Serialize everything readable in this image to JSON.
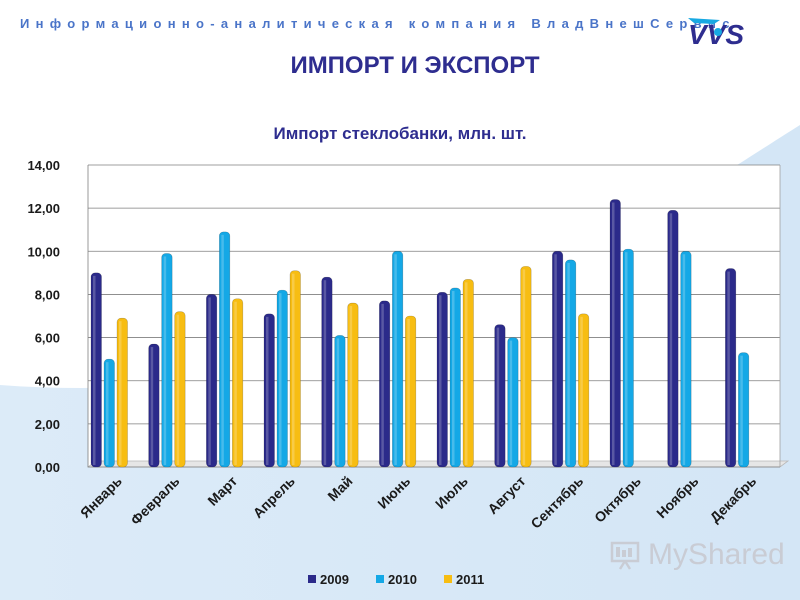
{
  "header": {
    "company_line": "Информационно-аналитическая компания ВладВнешСервис",
    "logo_text": "VVS"
  },
  "page_title": "ИМПОРТ И ЭКСПОРТ",
  "watermark": {
    "text": "MyShared"
  },
  "colors": {
    "2009": "#2b2a8a",
    "2010": "#14a8e6",
    "2011": "#f7bd12",
    "title": "#2e2d8f",
    "header": "#4a74c8"
  },
  "chart_data": {
    "type": "bar",
    "title": "Импорт стеклобанки, млн. шт.",
    "xlabel": "",
    "ylabel": "",
    "ylim": [
      0,
      14
    ],
    "yticks": [
      "0,00",
      "2,00",
      "4,00",
      "6,00",
      "8,00",
      "10,00",
      "12,00",
      "14,00"
    ],
    "grid": true,
    "legend": "bottom",
    "categories": [
      "Январь",
      "Февраль",
      "Март",
      "Апрель",
      "Май",
      "Июнь",
      "Июль",
      "Август",
      "Сентябрь",
      "Октябрь",
      "Ноябрь",
      "Декабрь"
    ],
    "series": [
      {
        "name": "2009",
        "values": [
          9.0,
          5.7,
          8.0,
          7.1,
          8.8,
          7.7,
          8.1,
          6.6,
          10.0,
          12.4,
          11.9,
          9.2
        ]
      },
      {
        "name": "2010",
        "values": [
          5.0,
          9.9,
          10.9,
          8.2,
          6.1,
          10.0,
          8.3,
          6.0,
          9.6,
          10.1,
          10.0,
          5.3
        ]
      },
      {
        "name": "2011",
        "values": [
          6.9,
          7.2,
          7.8,
          9.1,
          7.6,
          7.0,
          8.7,
          9.3,
          7.1,
          null,
          null,
          null
        ]
      }
    ]
  }
}
